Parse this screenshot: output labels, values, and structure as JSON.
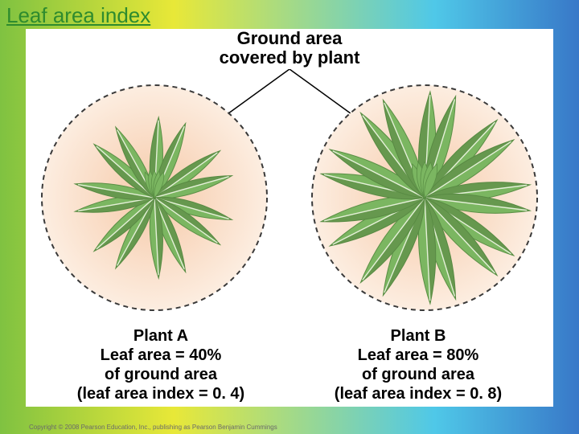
{
  "title": {
    "text": "Leaf area index",
    "color": "#2e8b2e",
    "fontsize": 26
  },
  "diagram": {
    "type": "infographic",
    "background_color": "#ffffff",
    "circle_stroke": "#3a3a3a",
    "circle_stroke_width": 2,
    "circle_dash": "6 5",
    "ground_gradient_inner": "#f6c9a8",
    "ground_gradient_outer": "#fdf1e6",
    "leaf_fill": "#7bb661",
    "leaf_edge": "#5a8f45",
    "leaf_dark": "#56803f",
    "midrib": "#e5f0d8",
    "top_label_line1": "Ground area",
    "top_label_line2": "covered by plant",
    "label_color": "#000000",
    "label_fontsize": 22,
    "plants": {
      "A": {
        "caption_l1": "Plant A",
        "caption_l2": "Leaf area = 40%",
        "caption_l3": "of ground area",
        "caption_l4": "(leaf area index = 0. 4)",
        "leaf_count": 14,
        "leaf_scale": 0.85
      },
      "B": {
        "caption_l1": "Plant B",
        "caption_l2": "Leaf area = 80%",
        "caption_l3": "of ground area",
        "caption_l4": "(leaf area index = 0. 8)",
        "leaf_count": 18,
        "leaf_scale": 1.12
      }
    },
    "caption_fontsize": 20
  },
  "copyright": "Copyright © 2008 Pearson Education, Inc., publishing as Pearson Benjamin Cummings"
}
